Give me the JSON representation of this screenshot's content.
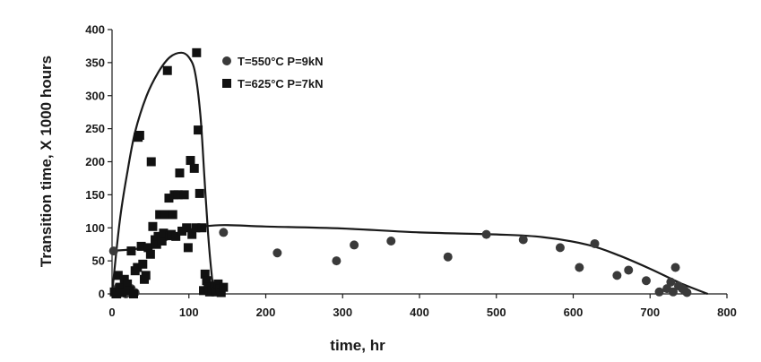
{
  "chart_data": {
    "type": "scatter",
    "xlabel": "time, hr",
    "ylabel": "Transition time, X 1000 hours",
    "xlim": [
      0,
      800
    ],
    "ylim": [
      0,
      400
    ],
    "x_ticks": [
      0,
      100,
      200,
      300,
      400,
      500,
      600,
      700,
      800
    ],
    "y_ticks": [
      0,
      50,
      100,
      150,
      200,
      250,
      300,
      350,
      400
    ],
    "grid": false,
    "legend_position": "top-right",
    "series": [
      {
        "name": "T=550°C P=9kN",
        "marker": "circle",
        "color": "#3a3a3a",
        "points": [
          [
            2,
            65
          ],
          [
            5,
            2
          ],
          [
            8,
            10
          ],
          [
            12,
            3
          ],
          [
            18,
            0
          ],
          [
            25,
            8
          ],
          [
            30,
            2
          ],
          [
            145,
            93
          ],
          [
            215,
            62
          ],
          [
            292,
            50
          ],
          [
            315,
            74
          ],
          [
            363,
            80
          ],
          [
            437,
            56
          ],
          [
            487,
            90
          ],
          [
            535,
            82
          ],
          [
            583,
            70
          ],
          [
            608,
            40
          ],
          [
            628,
            76
          ],
          [
            657,
            28
          ],
          [
            672,
            36
          ],
          [
            695,
            20
          ],
          [
            712,
            3
          ],
          [
            722,
            8
          ],
          [
            727,
            18
          ],
          [
            730,
            3
          ],
          [
            733,
            40
          ],
          [
            737,
            12
          ],
          [
            742,
            8
          ],
          [
            745,
            5
          ],
          [
            748,
            2
          ]
        ],
        "fit_curve": [
          [
            0,
            65
          ],
          [
            50,
            72
          ],
          [
            100,
            97
          ],
          [
            140,
            104
          ],
          [
            200,
            102
          ],
          [
            300,
            99
          ],
          [
            400,
            93
          ],
          [
            500,
            90
          ],
          [
            560,
            86
          ],
          [
            620,
            74
          ],
          [
            660,
            58
          ],
          [
            700,
            38
          ],
          [
            740,
            16
          ],
          [
            775,
            0
          ]
        ]
      },
      {
        "name": "T=625°C P=7kN",
        "marker": "square",
        "color": "#111111",
        "points": [
          [
            3,
            3
          ],
          [
            6,
            0
          ],
          [
            8,
            28
          ],
          [
            10,
            10
          ],
          [
            13,
            2
          ],
          [
            16,
            22
          ],
          [
            20,
            15
          ],
          [
            23,
            5
          ],
          [
            25,
            65
          ],
          [
            28,
            0
          ],
          [
            30,
            35
          ],
          [
            33,
            40
          ],
          [
            34,
            237
          ],
          [
            36,
            240
          ],
          [
            38,
            72
          ],
          [
            40,
            45
          ],
          [
            42,
            22
          ],
          [
            44,
            28
          ],
          [
            47,
            70
          ],
          [
            50,
            60
          ],
          [
            51,
            200
          ],
          [
            53,
            102
          ],
          [
            56,
            82
          ],
          [
            58,
            75
          ],
          [
            60,
            87
          ],
          [
            62,
            120
          ],
          [
            65,
            80
          ],
          [
            67,
            92
          ],
          [
            69,
            120
          ],
          [
            72,
            338
          ],
          [
            74,
            145
          ],
          [
            75,
            88
          ],
          [
            77,
            90
          ],
          [
            79,
            120
          ],
          [
            81,
            150
          ],
          [
            83,
            87
          ],
          [
            86,
            150
          ],
          [
            88,
            183
          ],
          [
            91,
            95
          ],
          [
            94,
            150
          ],
          [
            97,
            100
          ],
          [
            99,
            70
          ],
          [
            102,
            202
          ],
          [
            104,
            90
          ],
          [
            107,
            190
          ],
          [
            109,
            100
          ],
          [
            110,
            365
          ],
          [
            112,
            248
          ],
          [
            114,
            152
          ],
          [
            117,
            100
          ],
          [
            119,
            5
          ],
          [
            121,
            30
          ],
          [
            123,
            20
          ],
          [
            125,
            10
          ],
          [
            127,
            3
          ],
          [
            130,
            5
          ],
          [
            133,
            12
          ],
          [
            135,
            3
          ],
          [
            138,
            15
          ],
          [
            140,
            8
          ],
          [
            142,
            2
          ],
          [
            145,
            10
          ]
        ],
        "fit_curve": [
          [
            0,
            0
          ],
          [
            10,
            110
          ],
          [
            20,
            185
          ],
          [
            30,
            245
          ],
          [
            45,
            300
          ],
          [
            60,
            335
          ],
          [
            75,
            358
          ],
          [
            90,
            365
          ],
          [
            100,
            358
          ],
          [
            108,
            335
          ],
          [
            115,
            270
          ],
          [
            120,
            180
          ],
          [
            125,
            90
          ],
          [
            130,
            25
          ],
          [
            133,
            0
          ]
        ]
      }
    ]
  }
}
